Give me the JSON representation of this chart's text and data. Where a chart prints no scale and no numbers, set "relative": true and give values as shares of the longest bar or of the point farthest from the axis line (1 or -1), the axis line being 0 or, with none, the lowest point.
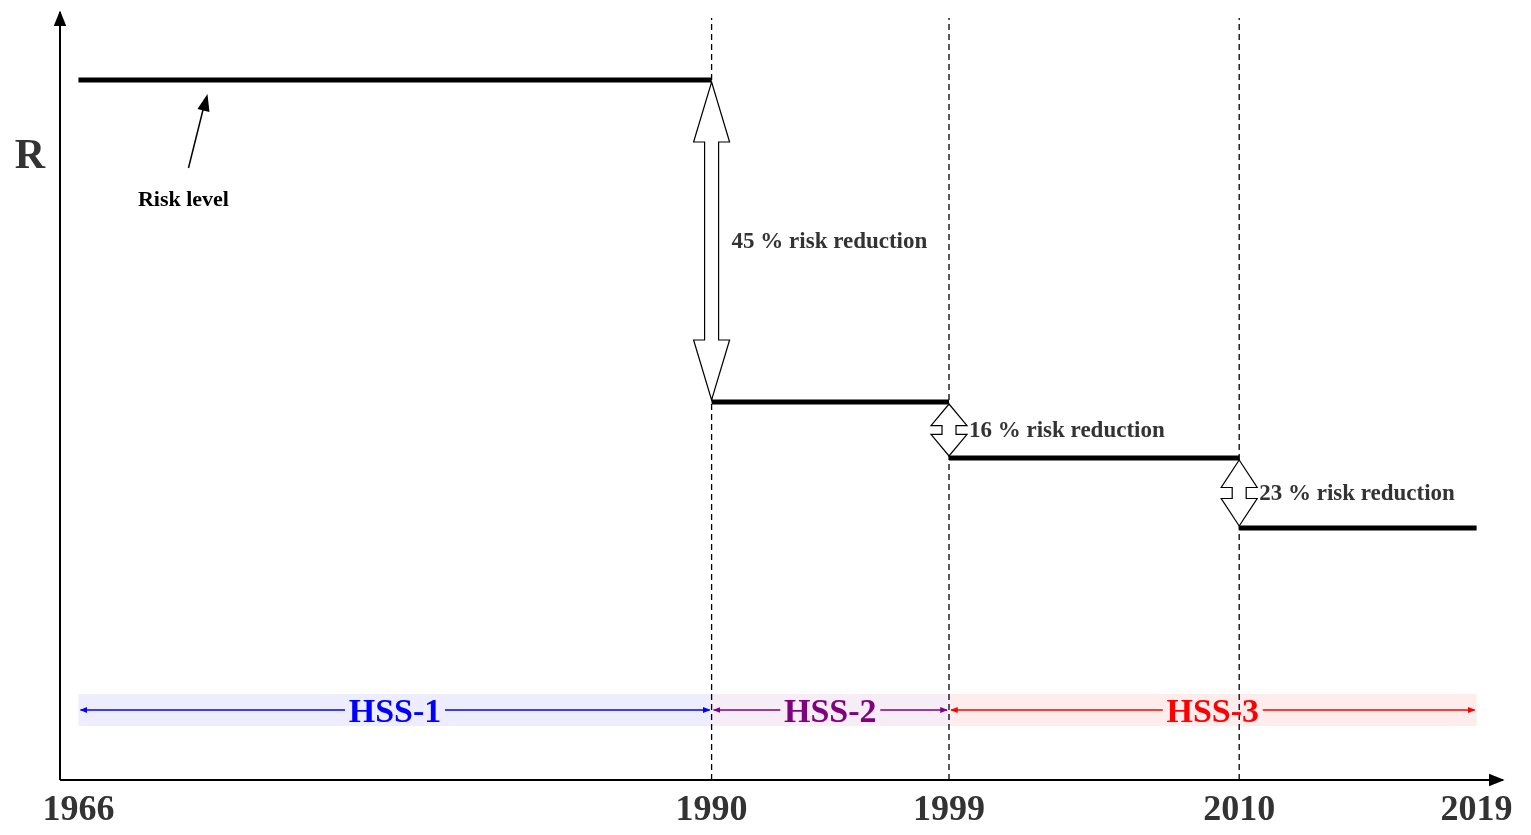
{
  "chart_data": {
    "type": "step",
    "relative": true,
    "ylabel": "R",
    "x": [
      1966,
      1990,
      1999,
      2010,
      2019
    ],
    "series": [
      {
        "color": "#000000",
        "values": [
          1,
          0.54,
          0.46,
          0.36,
          0.36
        ]
      }
    ],
    "xlim": [
      1965.3,
      2020
    ],
    "xticks": [
      1966,
      1990,
      1999,
      2010,
      2019
    ],
    "grid": false,
    "marker": "none",
    "line_style": "solid",
    "ref_lines": [
      {
        "axis": "x",
        "value": 1990,
        "line_style": "dashed",
        "color": "#000000"
      },
      {
        "axis": "x",
        "value": 1999,
        "line_style": "dashed",
        "color": "#000000"
      },
      {
        "axis": "x",
        "value": 2010,
        "line_style": "dashed",
        "color": "#000000"
      }
    ],
    "bands": [
      {
        "axis": "x",
        "from": 1966,
        "to": 1990,
        "label": "HSS-1",
        "color": "#0000ff"
      },
      {
        "axis": "x",
        "from": 1990,
        "to": 1999,
        "label": "HSS-2",
        "color": "#800080"
      },
      {
        "axis": "x",
        "from": 1999,
        "to": 2019,
        "label": "HSS-3",
        "color": "#ff0000"
      }
    ],
    "annotations": [
      "Risk level",
      {
        "text": "45 % risk reduction",
        "x": 1990,
        "y": 0.77
      },
      {
        "text": "16 % risk reduction",
        "x": 1999,
        "y": 0.5
      },
      {
        "text": "23 % risk reduction",
        "x": 2010,
        "y": 0.41
      }
    ]
  }
}
